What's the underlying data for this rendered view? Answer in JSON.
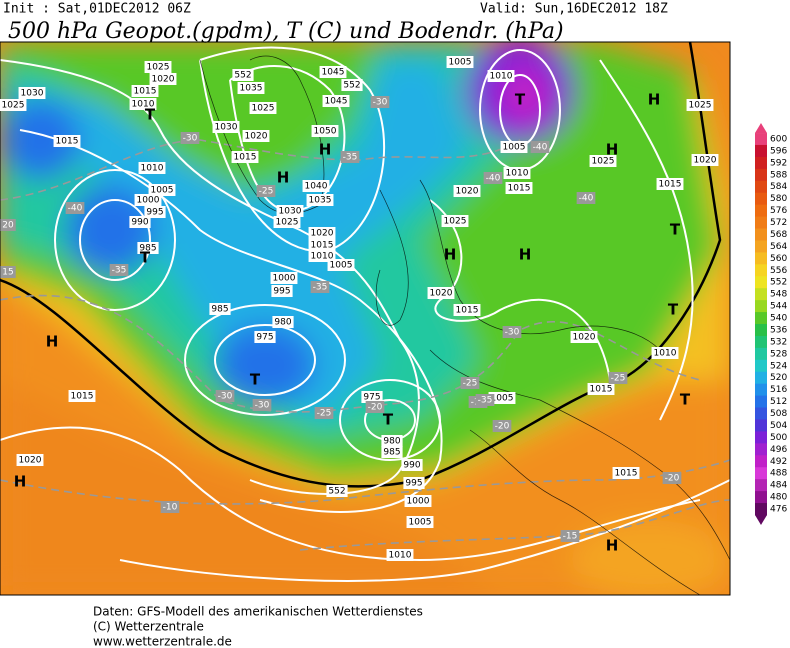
{
  "header": {
    "init": "Init : Sat,01DEC2012 06Z",
    "valid": "Valid: Sun,16DEC2012 18Z",
    "title": "500 hPa Geopot.(gpdm), T (C) und Bodendr. (hPa)"
  },
  "map": {
    "pressure_labels": [
      "1025",
      "1020",
      "1015",
      "1010",
      "1030",
      "1025",
      "1015",
      "1010",
      "1005",
      "1000",
      "995",
      "990",
      "985",
      "1035",
      "1025",
      "1030",
      "1020",
      "1015",
      "1045",
      "1045",
      "1050",
      "1040",
      "1035",
      "1030",
      "1025",
      "1020",
      "1015",
      "1010",
      "1005",
      "1000",
      "995",
      "985",
      "980",
      "975",
      "975",
      "980",
      "985",
      "990",
      "995",
      "1000",
      "1005",
      "1010",
      "1015",
      "1020",
      "1005",
      "1010",
      "1005",
      "1010",
      "1015",
      "1020",
      "1025",
      "1020",
      "1015",
      "1020",
      "1015",
      "1010",
      "1015",
      "1025",
      "1020",
      "1025",
      "1005",
      "1015"
    ],
    "temperature_labels": [
      "-30",
      "-35",
      "-25",
      "-35",
      "-40",
      "-35",
      "-30",
      "-30",
      "-25",
      "-20",
      "-25",
      "-20",
      "-15",
      "-40",
      "-40",
      "-40",
      "-30",
      "-25",
      "-20",
      "-15",
      "-10",
      "-30",
      "-35",
      "20",
      "15"
    ],
    "geopotential_labels": [
      "552",
      "552",
      "552"
    ],
    "centers": [
      "T",
      "H",
      "H",
      "T",
      "H",
      "T",
      "T",
      "H",
      "T",
      "H",
      "H",
      "H",
      "H",
      "T",
      "T",
      "T",
      "H"
    ]
  },
  "colorbar": {
    "values": [
      600,
      596,
      592,
      588,
      584,
      580,
      576,
      572,
      568,
      564,
      560,
      556,
      552,
      548,
      544,
      540,
      536,
      532,
      528,
      524,
      520,
      516,
      512,
      508,
      504,
      500,
      496,
      492,
      488,
      484,
      480,
      476
    ],
    "colors": [
      "#e8407a",
      "#c81030",
      "#d02020",
      "#d83418",
      "#e04812",
      "#e85a10",
      "#ee6c10",
      "#f07c16",
      "#f2901c",
      "#f4a420",
      "#f6bc20",
      "#f6d420",
      "#eee420",
      "#c4e020",
      "#98d820",
      "#58c828",
      "#28c048",
      "#20c474",
      "#20c8a0",
      "#20c8c8",
      "#20b0e4",
      "#2090ea",
      "#2472e8",
      "#3454e0",
      "#5034d8",
      "#7c20d8",
      "#a020d0",
      "#c020c8",
      "#d838d8",
      "#b424b4",
      "#901090",
      "#600860"
    ]
  },
  "footer": {
    "line1": "Daten: GFS-Modell des amerikanischen Wetterdienstes",
    "line2": "(C) Wetterzentrale",
    "line3": "www.wetterzentrale.de"
  }
}
